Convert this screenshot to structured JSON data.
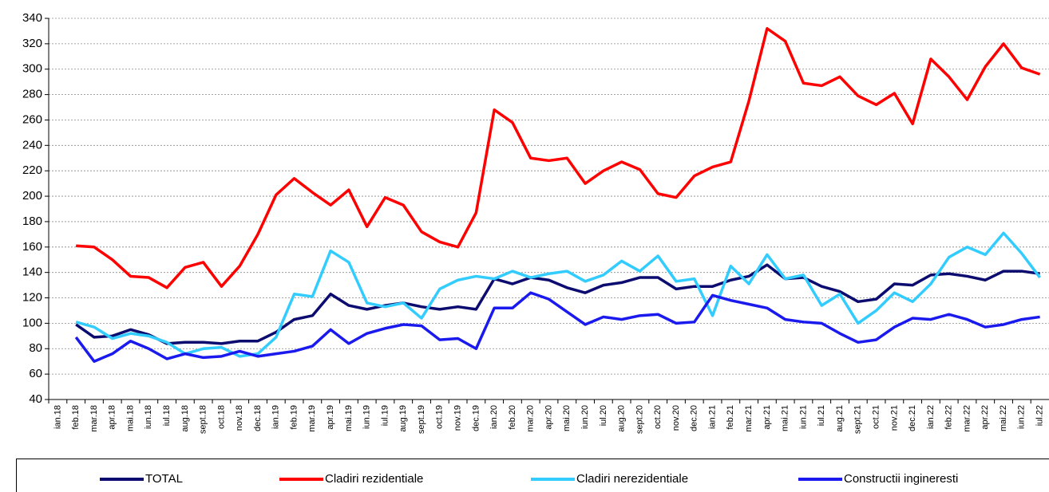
{
  "chart_data": {
    "type": "line",
    "categories": [
      "ian.18",
      "feb.18",
      "mar.18",
      "apr.18",
      "mai.18",
      "iun.18",
      "iul.18",
      "aug.18",
      "sept.18",
      "oct.18",
      "nov.18",
      "dec.18",
      "ian.19",
      "feb.19",
      "mar.19",
      "apr.19",
      "mai.19",
      "iun.19",
      "iul.19",
      "aug.19",
      "sept.19",
      "oct.19",
      "nov.19",
      "dec.19",
      "ian.20",
      "feb.20",
      "mar.20",
      "apr.20",
      "mai.20",
      "iun.20",
      "iul.20",
      "aug.20",
      "sept.20",
      "oct.20",
      "nov.20",
      "dec.20",
      "ian.21",
      "feb.21",
      "mar.21",
      "apr.21",
      "mai.21",
      "iun.21",
      "iul.21",
      "aug.21",
      "sept.21",
      "oct.21",
      "nov.21",
      "dec.21",
      "ian.22",
      "feb.22",
      "mar.22",
      "apr.22",
      "mai.22",
      "iun.22",
      "iul.22"
    ],
    "series": [
      {
        "name": "TOTAL",
        "color": "#0c0c70",
        "values": [
          null,
          99,
          89,
          90,
          95,
          91,
          84,
          85,
          85,
          84,
          86,
          86,
          93,
          103,
          106,
          123,
          114,
          111,
          114,
          116,
          113,
          111,
          113,
          111,
          135,
          131,
          136,
          134,
          128,
          124,
          130,
          132,
          136,
          136,
          127,
          129,
          129,
          134,
          137,
          146,
          135,
          136,
          129,
          125,
          117,
          119,
          131,
          130,
          138,
          139,
          137,
          134,
          141,
          141,
          139
        ]
      },
      {
        "name": "Cladiri rezidentiale",
        "color": "#ff0000",
        "values": [
          null,
          161,
          160,
          150,
          137,
          136,
          128,
          144,
          148,
          129,
          145,
          170,
          201,
          214,
          203,
          193,
          205,
          176,
          199,
          193,
          172,
          164,
          160,
          187,
          268,
          258,
          230,
          228,
          230,
          210,
          220,
          227,
          221,
          202,
          199,
          216,
          223,
          227,
          275,
          332,
          322,
          289,
          287,
          294,
          279,
          272,
          281,
          257,
          308,
          294,
          276,
          302,
          320,
          301,
          296
        ]
      },
      {
        "name": "Cladiri nerezidentiale",
        "color": "#33ccff",
        "values": [
          null,
          101,
          97,
          88,
          92,
          90,
          85,
          76,
          80,
          81,
          74,
          76,
          89,
          123,
          121,
          157,
          148,
          116,
          113,
          116,
          104,
          127,
          134,
          137,
          135,
          141,
          136,
          139,
          141,
          133,
          138,
          149,
          141,
          153,
          133,
          135,
          106,
          145,
          131,
          154,
          135,
          138,
          114,
          123,
          100,
          110,
          124,
          117,
          131,
          152,
          160,
          154,
          171,
          155,
          136
        ]
      },
      {
        "name": "Constructii ingineresti",
        "color": "#1a1aee",
        "values": [
          null,
          89,
          70,
          76,
          86,
          80,
          72,
          76,
          73,
          74,
          78,
          74,
          76,
          78,
          82,
          95,
          84,
          92,
          96,
          99,
          98,
          87,
          88,
          80,
          112,
          112,
          124,
          119,
          109,
          99,
          105,
          103,
          106,
          107,
          100,
          101,
          122,
          118,
          115,
          112,
          103,
          101,
          100,
          92,
          85,
          87,
          97,
          104,
          103,
          107,
          103,
          97,
          99,
          103,
          105
        ]
      }
    ],
    "ylim": [
      40,
      340
    ],
    "yticks": [
      40,
      60,
      80,
      100,
      120,
      140,
      160,
      180,
      200,
      220,
      240,
      260,
      280,
      300,
      320,
      340
    ],
    "grid": true,
    "legend": "bottom"
  }
}
